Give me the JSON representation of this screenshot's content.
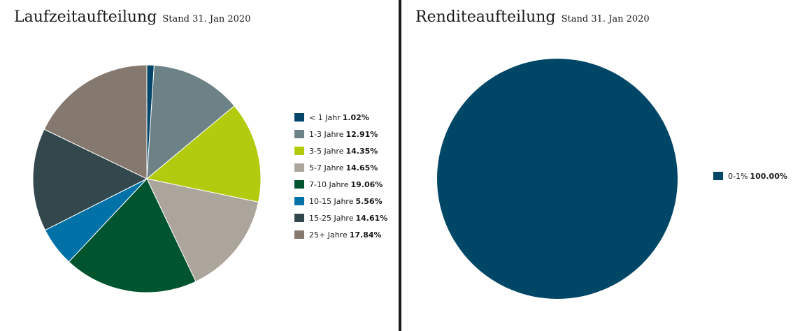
{
  "chart_data": [
    {
      "type": "pie",
      "title": "Laufzeitaufteilung",
      "subtitle": "Stand 31. Jan 2020",
      "legend_position": "right",
      "slices": [
        {
          "label": "< 1 Jahr",
          "value": 1.02,
          "value_text": "1.02%",
          "color": "#00466a"
        },
        {
          "label": "1-3 Jahre",
          "value": 12.91,
          "value_text": "12.91%",
          "color": "#6d8286"
        },
        {
          "label": "3-5 Jahre",
          "value": 14.35,
          "value_text": "14.35%",
          "color": "#b2cb0f"
        },
        {
          "label": "5-7 Jahre",
          "value": 14.65,
          "value_text": "14.65%",
          "color": "#aca59b"
        },
        {
          "label": "7-10 Jahre",
          "value": 19.06,
          "value_text": "19.06%",
          "color": "#00552f"
        },
        {
          "label": "10-15 Jahre",
          "value": 5.56,
          "value_text": "5.56%",
          "color": "#0072a8"
        },
        {
          "label": "15-25 Jahre",
          "value": 14.61,
          "value_text": "14.61%",
          "color": "#32484c"
        },
        {
          "label": "25+ Jahre",
          "value": 17.84,
          "value_text": "17.84%",
          "color": "#85786f"
        }
      ]
    },
    {
      "type": "pie",
      "title": "Renditeaufteilung",
      "subtitle": "Stand 31. Jan 2020",
      "legend_position": "right",
      "slices": [
        {
          "label": "0-1%",
          "value": 100.0,
          "value_text": "100.00%",
          "color": "#004666"
        }
      ]
    }
  ]
}
